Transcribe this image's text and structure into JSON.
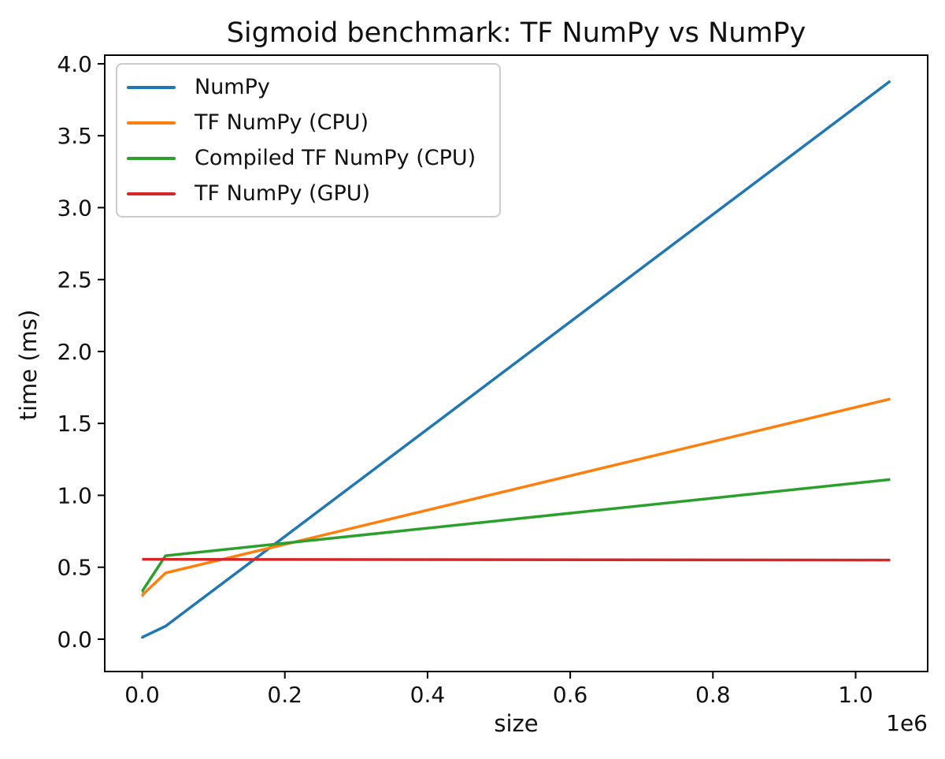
{
  "chart_data": {
    "type": "line",
    "title": "Sigmoid benchmark: TF NumPy vs NumPy",
    "xlabel": "size",
    "ylabel": "time (ms)",
    "x_offset_text": "1e6",
    "grid": false,
    "legend_position": "upper left",
    "xlim": [
      -52429,
      1101005
    ],
    "ylim": [
      -0.225,
      4.06
    ],
    "xticks": [
      0,
      200000,
      400000,
      600000,
      800000,
      1000000
    ],
    "xticklabels": [
      "0.0",
      "0.2",
      "0.4",
      "0.6",
      "0.8",
      "1.0"
    ],
    "yticks": [
      0,
      0.5,
      1.0,
      1.5,
      2.0,
      2.5,
      3.0,
      3.5,
      4.0
    ],
    "yticklabels": [
      "0.0",
      "0.5",
      "1.0",
      "1.5",
      "2.0",
      "2.5",
      "3.0",
      "3.5",
      "4.0"
    ],
    "x": [
      1,
      32,
      1024,
      32768,
      1048576
    ],
    "series": [
      {
        "name": "NumPy",
        "color": "#1f77b4",
        "values": [
          0.005,
          0.007,
          0.015,
          0.09,
          3.88
        ]
      },
      {
        "name": "TF NumPy (CPU)",
        "color": "#ff7f0e",
        "values": [
          0.3,
          0.3,
          0.31,
          0.46,
          1.67
        ]
      },
      {
        "name": "Compiled TF NumPy (CPU)",
        "color": "#2ca02c",
        "values": [
          0.33,
          0.33,
          0.34,
          0.58,
          1.11
        ]
      },
      {
        "name": "TF NumPy (GPU)",
        "color": "#d62728",
        "values": [
          0.555,
          0.555,
          0.555,
          0.555,
          0.55
        ]
      }
    ],
    "spine_color": "#000000",
    "tick_label_color": "#111111"
  }
}
